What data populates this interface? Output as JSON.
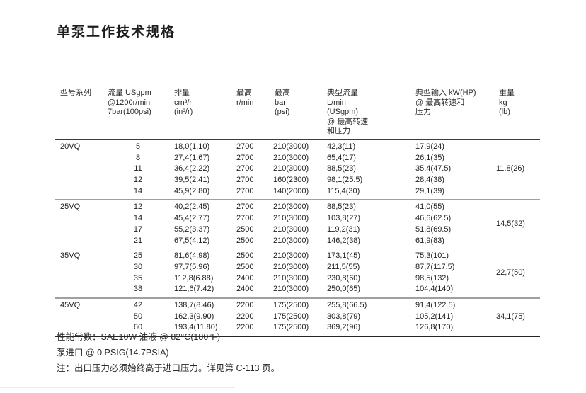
{
  "page": {
    "title": "单泵工作技术规格"
  },
  "table": {
    "headers": [
      {
        "name": "model-series",
        "lines": [
          "型号系列"
        ]
      },
      {
        "name": "flow",
        "lines": [
          "流量 USgpm",
          "@1200r/min",
          "7bar(100psi)"
        ]
      },
      {
        "name": "displacement",
        "lines": [
          "排量",
          "cm³/r",
          "(in³/r)"
        ]
      },
      {
        "name": "max-speed",
        "lines": [
          "最高",
          "r/min"
        ]
      },
      {
        "name": "max-pressure",
        "lines": [
          "最高",
          "bar",
          "(psi)"
        ]
      },
      {
        "name": "typical-flow",
        "lines": [
          "典型流量",
          "L/min",
          "(USgpm)",
          "@ 最高转速",
          "和压力"
        ]
      },
      {
        "name": "typical-input",
        "lines": [
          "典型输入 kW(HP)",
          "@ 最高转速和",
          "压力"
        ]
      },
      {
        "name": "weight",
        "lines": [
          "重量",
          "kg",
          "(lb)"
        ]
      }
    ],
    "groups": [
      {
        "model": "20VQ",
        "weight": "11,8(26)",
        "rows": [
          [
            "5",
            "18,0(1.10)",
            "2700",
            "210(3000)",
            "42,3(11)",
            "17,9(24)"
          ],
          [
            "8",
            "27,4(1.67)",
            "2700",
            "210(3000)",
            "65,4(17)",
            "26,1(35)"
          ],
          [
            "11",
            "36,4(2.22)",
            "2700",
            "210(3000)",
            "88,5(23)",
            "35,4(47.5)"
          ],
          [
            "12",
            "39,5(2.41)",
            "2700",
            "160(2300)",
            "98,1(25.5)",
            "28,4(38)"
          ],
          [
            "14",
            "45,9(2.80)",
            "2700",
            "140(2000)",
            "115,4(30)",
            "29,1(39)"
          ]
        ]
      },
      {
        "model": "25VQ",
        "weight": "14,5(32)",
        "rows": [
          [
            "12",
            "40,2(2.45)",
            "2700",
            "210(3000)",
            "88,5(23)",
            "41,0(55)"
          ],
          [
            "14",
            "45,4(2.77)",
            "2700",
            "210(3000)",
            "103,8(27)",
            "46,6(62.5)"
          ],
          [
            "17",
            "55,2(3.37)",
            "2500",
            "210(3000)",
            "119,2(31)",
            "51,8(69.5)"
          ],
          [
            "21",
            "67,5(4.12)",
            "2500",
            "210(3000)",
            "146,2(38)",
            "61,9(83)"
          ]
        ]
      },
      {
        "model": "35VQ",
        "weight": "22,7(50)",
        "rows": [
          [
            "25",
            "81,6(4.98)",
            "2500",
            "210(3000)",
            "173,1(45)",
            "75,3(101)"
          ],
          [
            "30",
            "97,7(5.96)",
            "2500",
            "210(3000)",
            "211,5(55)",
            "87,7(117.5)"
          ],
          [
            "35",
            "112,8(6.88)",
            "2400",
            "210(3000)",
            "230,8(60)",
            "98,5(132)"
          ],
          [
            "38",
            "121,6(7.42)",
            "2400",
            "210(3000)",
            "250,0(65)",
            "104,4(140)"
          ]
        ]
      },
      {
        "model": "45VQ",
        "weight": "34,1(75)",
        "rows": [
          [
            "42",
            "138,7(8.46)",
            "2200",
            "175(2500)",
            "255,8(66.5)",
            "91,4(122.5)"
          ],
          [
            "50",
            "162,3(9.90)",
            "2200",
            "175(2500)",
            "303,8(79)",
            "105,2(141)"
          ],
          [
            "60",
            "193,4(11.80)",
            "2200",
            "175(2500)",
            "369,2(96)",
            "126,8(170)"
          ]
        ]
      }
    ]
  },
  "notes": [
    "性能常数：SAE10W 油液 @ 82°C(180°F)",
    "泵进口 @ 0 PSIG(14.7PSIA)",
    "注：出口压力必须始终高于进口压力。详见第 C-113 页。"
  ],
  "colors": {
    "text": "#222222",
    "rule_dark": "#3c3c3c",
    "rule_gray": "#a0a0a0"
  }
}
